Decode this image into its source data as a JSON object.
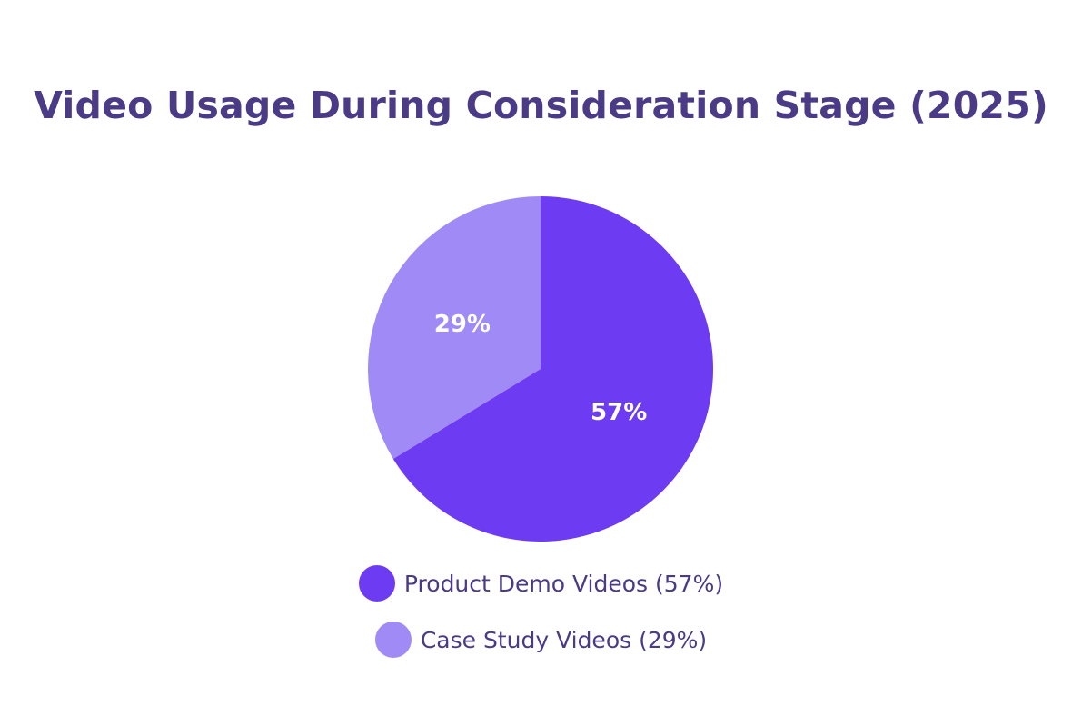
{
  "chart_data": {
    "type": "pie",
    "title": "Video Usage During Consideration Stage (2025)",
    "slices": [
      {
        "label": "Product Demo Videos",
        "value": 57,
        "display": "57%",
        "legend": "Product Demo Videos (57%)",
        "color": "#6c3bf2"
      },
      {
        "label": "Case Study Videos",
        "value": 29,
        "display": "29%",
        "legend": "Case Study Videos (29%)",
        "color": "#a08af6"
      }
    ],
    "legend_position": "bottom"
  }
}
